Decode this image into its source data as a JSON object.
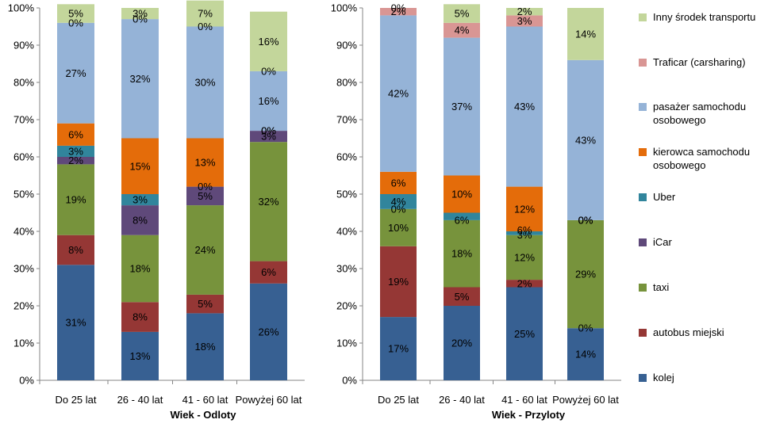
{
  "chart_data": [
    {
      "type": "bar",
      "stacked": true,
      "xlabel": "Wiek - Odloty",
      "ylabel": "",
      "ylim": [
        0,
        100
      ],
      "y_ticks": [
        "0%",
        "10%",
        "20%",
        "30%",
        "40%",
        "50%",
        "60%",
        "70%",
        "80%",
        "90%",
        "100%"
      ],
      "categories": [
        "Do 25 lat",
        "26 - 40 lat",
        "41 - 60 lat",
        "Powyżej 60 lat"
      ],
      "series": [
        {
          "name": "kolej",
          "values": [
            31,
            13,
            18,
            26
          ],
          "labels": [
            "31%",
            "13%",
            "18%",
            "26%"
          ]
        },
        {
          "name": "autobus miejski",
          "values": [
            8,
            8,
            5,
            6
          ],
          "labels": [
            "8%",
            "8%",
            "5%",
            "6%"
          ]
        },
        {
          "name": "taxi",
          "values": [
            19,
            18,
            24,
            32
          ],
          "labels": [
            "19%",
            "18%",
            "24%",
            "32%"
          ]
        },
        {
          "name": "iCar",
          "values": [
            2,
            8,
            5,
            3
          ],
          "labels": [
            "2%",
            "8%",
            "5%",
            "3%"
          ]
        },
        {
          "name": "Uber",
          "values": [
            3,
            3,
            0,
            0
          ],
          "labels": [
            "3%",
            "3%",
            "0%",
            "0%"
          ]
        },
        {
          "name": "kierowca samochodu osobowego",
          "values": [
            6,
            15,
            13,
            0
          ],
          "labels": [
            "6%",
            "15%",
            "13%",
            "0%"
          ]
        },
        {
          "name": "pasażer samochodu osobowego",
          "values": [
            27,
            32,
            30,
            16
          ],
          "labels": [
            "27%",
            "32%",
            "30%",
            "16%"
          ]
        },
        {
          "name": "Traficar (carsharing)",
          "values": [
            0,
            0,
            0,
            0
          ],
          "labels": [
            "0%",
            "0%",
            "0%",
            "0%"
          ]
        },
        {
          "name": "Inny środek transportu",
          "values": [
            5,
            3,
            7,
            16
          ],
          "labels": [
            "5%",
            "3%",
            "7%",
            "16%"
          ]
        }
      ]
    },
    {
      "type": "bar",
      "stacked": true,
      "xlabel": "Wiek - Przyloty",
      "ylabel": "",
      "ylim": [
        0,
        100
      ],
      "y_ticks": [
        "0%",
        "10%",
        "20%",
        "30%",
        "40%",
        "50%",
        "60%",
        "70%",
        "80%",
        "90%",
        "100%"
      ],
      "categories": [
        "Do 25 lat",
        "26 - 40 lat",
        "41 - 60 lat",
        "Powyżej 60  lat"
      ],
      "series": [
        {
          "name": "kolej",
          "values": [
            17,
            20,
            25,
            14
          ],
          "labels": [
            "17%",
            "20%",
            "25%",
            "14%"
          ]
        },
        {
          "name": "autobus miejski",
          "values": [
            19,
            5,
            2,
            0
          ],
          "labels": [
            "19%",
            "5%",
            "2%",
            "0%"
          ]
        },
        {
          "name": "taxi",
          "values": [
            10,
            18,
            12,
            29
          ],
          "labels": [
            "10%",
            "18%",
            "12%",
            "29%"
          ]
        },
        {
          "name": "iCar",
          "values": [
            0,
            0,
            0,
            0
          ],
          "labels": [
            "0%",
            "",
            "",
            "0%"
          ]
        },
        {
          "name": "Uber",
          "values": [
            4,
            2,
            1,
            0
          ],
          "labels": [
            "4%",
            "",
            "",
            "0%"
          ]
        },
        {
          "name": "kierowca samochodu osobowego",
          "values": [
            6,
            10,
            12,
            0
          ],
          "labels": [
            "6%",
            "10%",
            "12%",
            "0%"
          ]
        },
        {
          "name": "pasażer samochodu osobowego",
          "values": [
            42,
            37,
            43,
            43
          ],
          "labels": [
            "42%",
            "37%",
            "43%",
            "43%"
          ]
        },
        {
          "name": "Traficar (carsharing)",
          "values": [
            2,
            4,
            3,
            0
          ],
          "labels": [
            "2%",
            "4%",
            "3%",
            ""
          ]
        },
        {
          "name": "Inny środek transportu",
          "values": [
            0,
            5,
            2,
            14
          ],
          "labels": [
            "0%",
            "5%",
            "2%",
            "14%"
          ]
        }
      ],
      "extra_labels": [
        {
          "category_index": 1,
          "text": "6%"
        },
        {
          "category_index": 2,
          "text": "3%"
        },
        {
          "category_index": 2,
          "text": "6%"
        }
      ]
    }
  ],
  "legend": {
    "items": [
      {
        "label": "Inny środek transportu",
        "color": "#c3d69b"
      },
      {
        "label": "Traficar (carsharing)",
        "color": "#d99694"
      },
      {
        "label": "pasażer samochodu osobowego",
        "color": "#95b3d7"
      },
      {
        "label": "kierowca samochodu osobowego",
        "color": "#e46c0a"
      },
      {
        "label": "Uber",
        "color": "#31859c"
      },
      {
        "label": "iCar",
        "color": "#5f497a"
      },
      {
        "label": "taxi",
        "color": "#77933c"
      },
      {
        "label": "autobus miejski",
        "color": "#953735"
      },
      {
        "label": "kolej",
        "color": "#376092"
      }
    ]
  },
  "colors": {
    "kolej": "#376092",
    "autobus miejski": "#953735",
    "taxi": "#77933c",
    "iCar": "#5f497a",
    "Uber": "#31859c",
    "kierowca samochodu osobowego": "#e46c0a",
    "pasażer samochodu osobowego": "#95b3d7",
    "Traficar (carsharing)": "#d99694",
    "Inny środek transportu": "#c3d69b"
  }
}
